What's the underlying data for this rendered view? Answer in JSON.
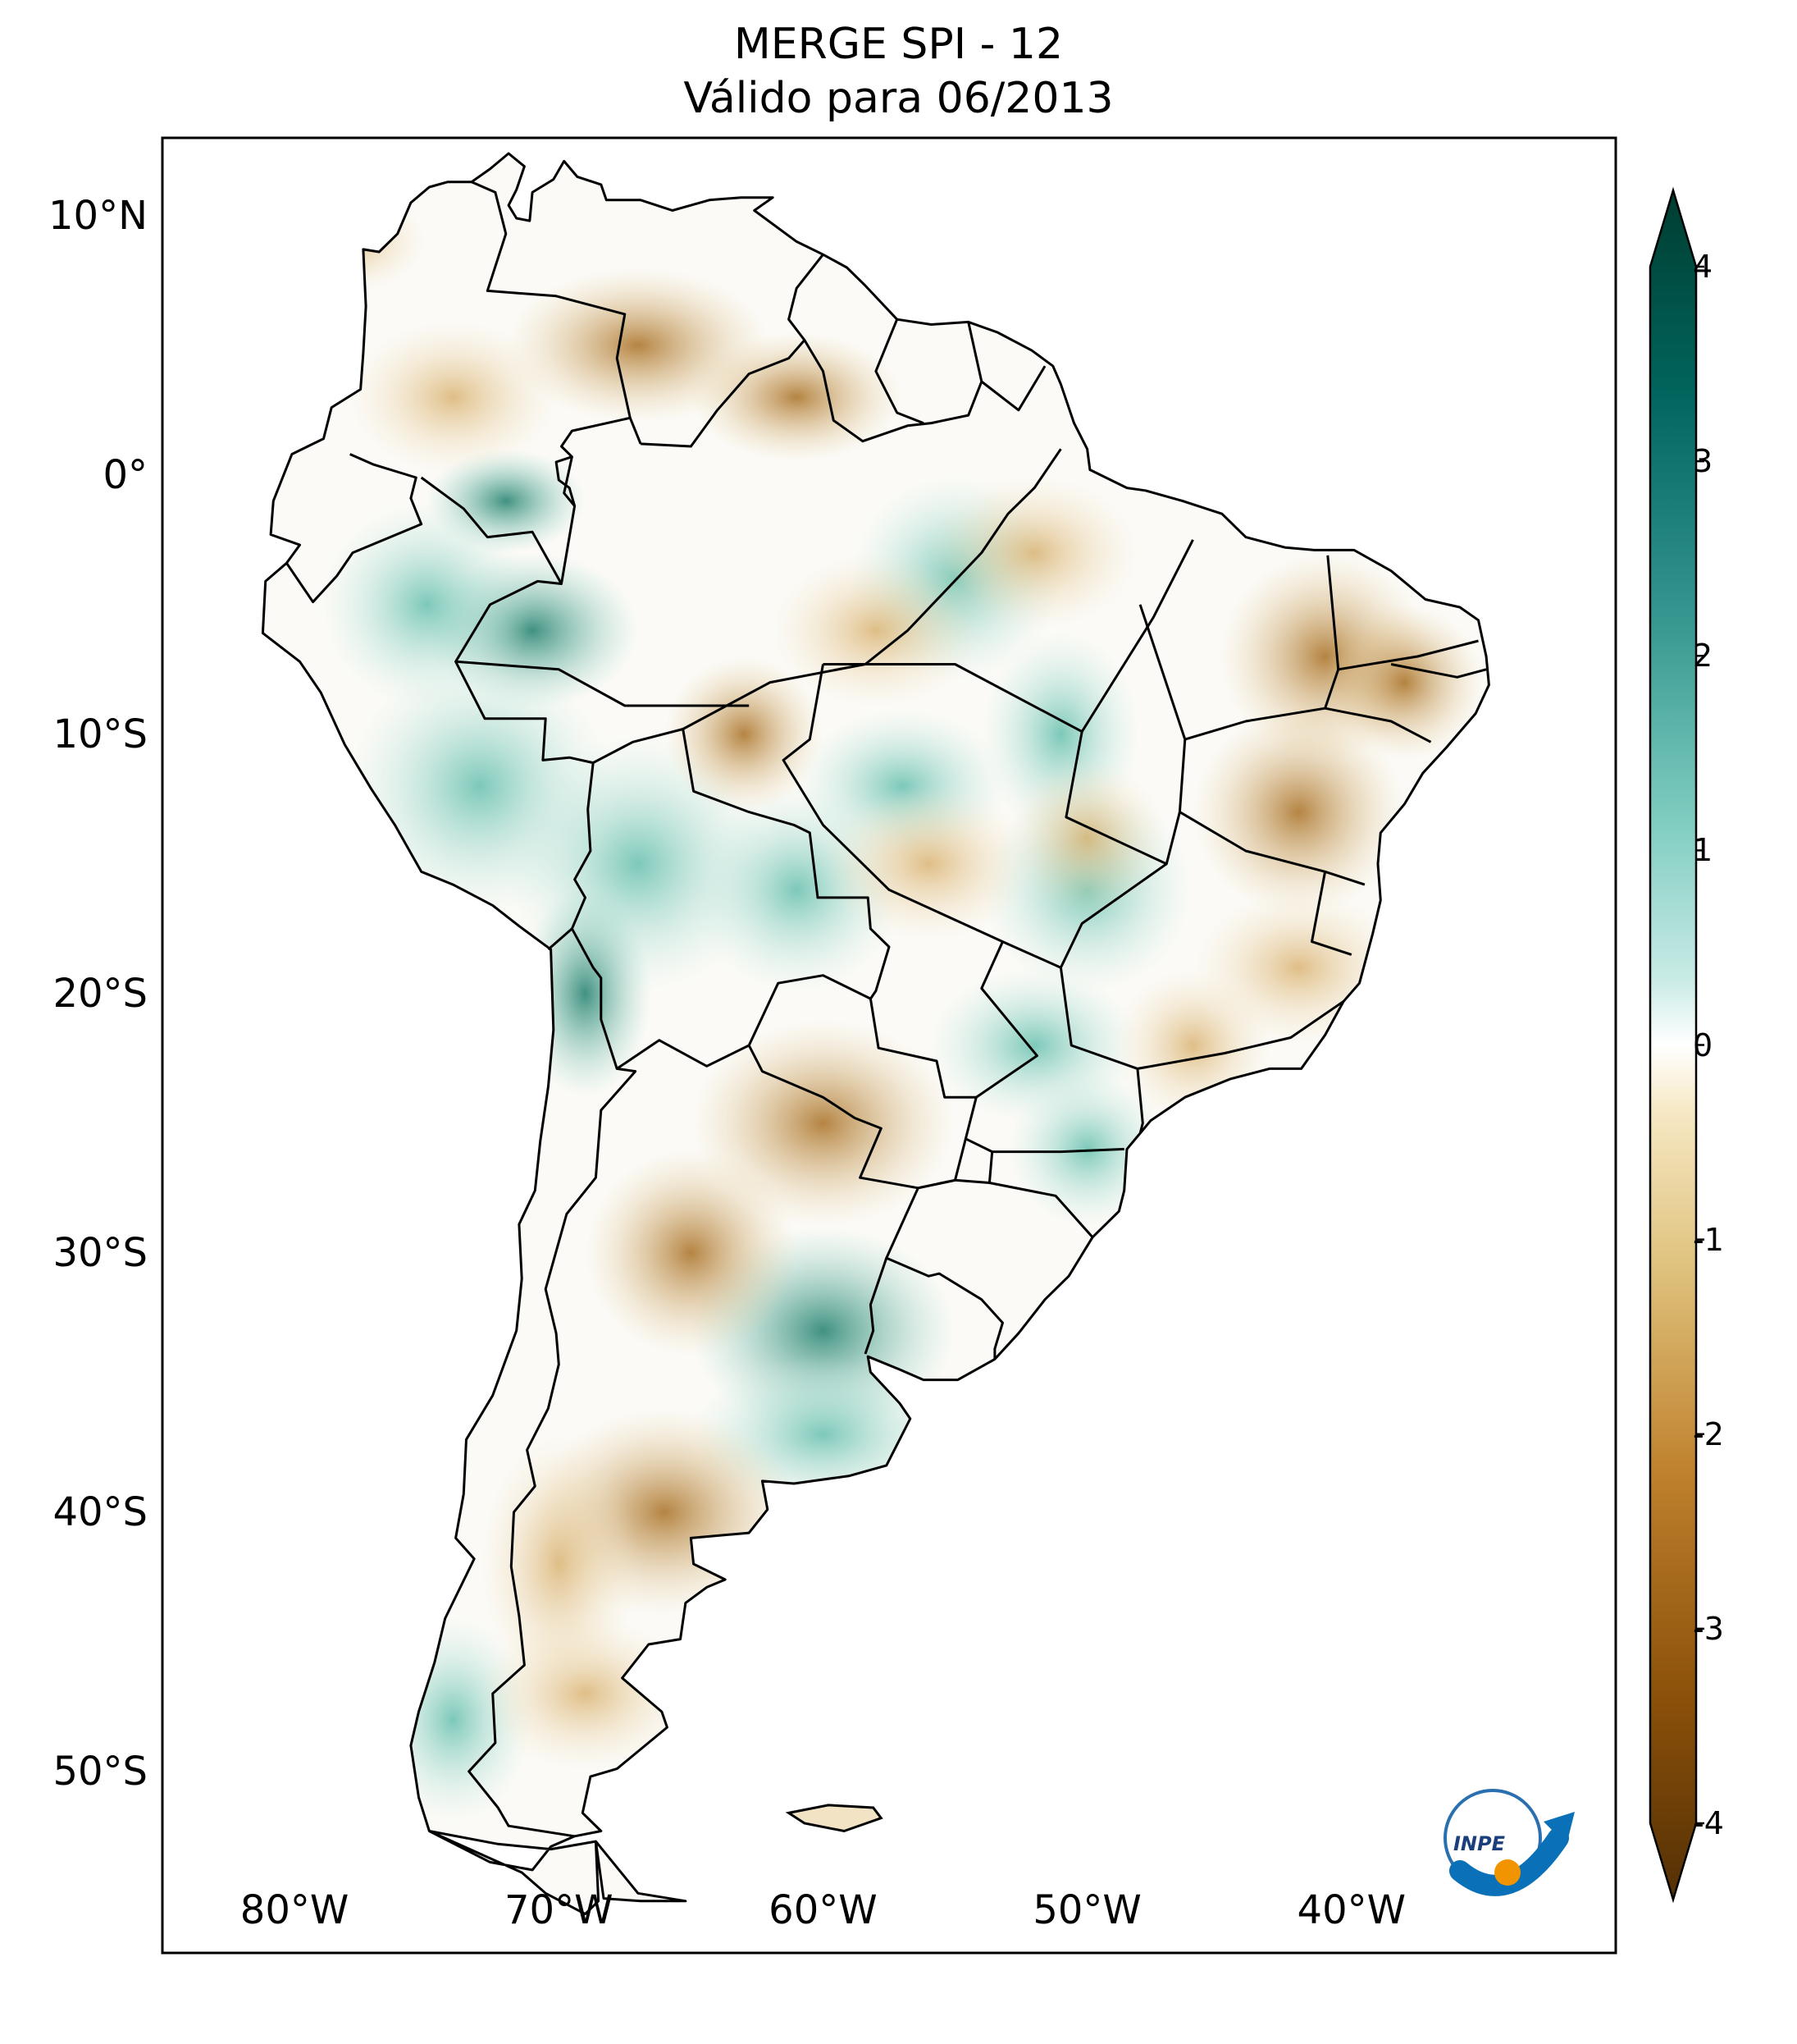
{
  "title": {
    "line1": "MERGE   SPI - 12",
    "line2": "Válido para 06/2013"
  },
  "map": {
    "projection": "PlateCarree",
    "extent_lon": [
      -85,
      -30
    ],
    "extent_lat": [
      -57,
      13
    ],
    "lat_ticks": [
      {
        "value": 10,
        "label": "10°N"
      },
      {
        "value": 0,
        "label": "0°"
      },
      {
        "value": -10,
        "label": "10°S"
      },
      {
        "value": -20,
        "label": "20°S"
      },
      {
        "value": -30,
        "label": "30°S"
      },
      {
        "value": -40,
        "label": "40°S"
      },
      {
        "value": -50,
        "label": "50°S"
      }
    ],
    "lon_ticks": [
      {
        "value": -80,
        "label": "80°W"
      },
      {
        "value": -70,
        "label": "70°W"
      },
      {
        "value": -60,
        "label": "60°W"
      },
      {
        "value": -50,
        "label": "50°W"
      },
      {
        "value": -40,
        "label": "40°W"
      }
    ],
    "colors": {
      "dry_strong": "#5c3a0d",
      "dry": "#c89a4a",
      "neutral": "#ffffff",
      "wet": "#6cc3b2",
      "wet_strong": "#0d4d40",
      "border": "#000000"
    }
  },
  "colorbar": {
    "min": -4,
    "max": 4,
    "ticks": [
      {
        "value": 4,
        "label": "4"
      },
      {
        "value": 3,
        "label": "3"
      },
      {
        "value": 2,
        "label": "2"
      },
      {
        "value": 1,
        "label": "1"
      },
      {
        "value": 0,
        "label": "0"
      },
      {
        "value": -1,
        "label": "-1"
      },
      {
        "value": -2,
        "label": "-2"
      },
      {
        "value": -3,
        "label": "-3"
      },
      {
        "value": -4,
        "label": "-4"
      }
    ],
    "colormap": "BrBG"
  },
  "logo": {
    "text": "INPE"
  }
}
